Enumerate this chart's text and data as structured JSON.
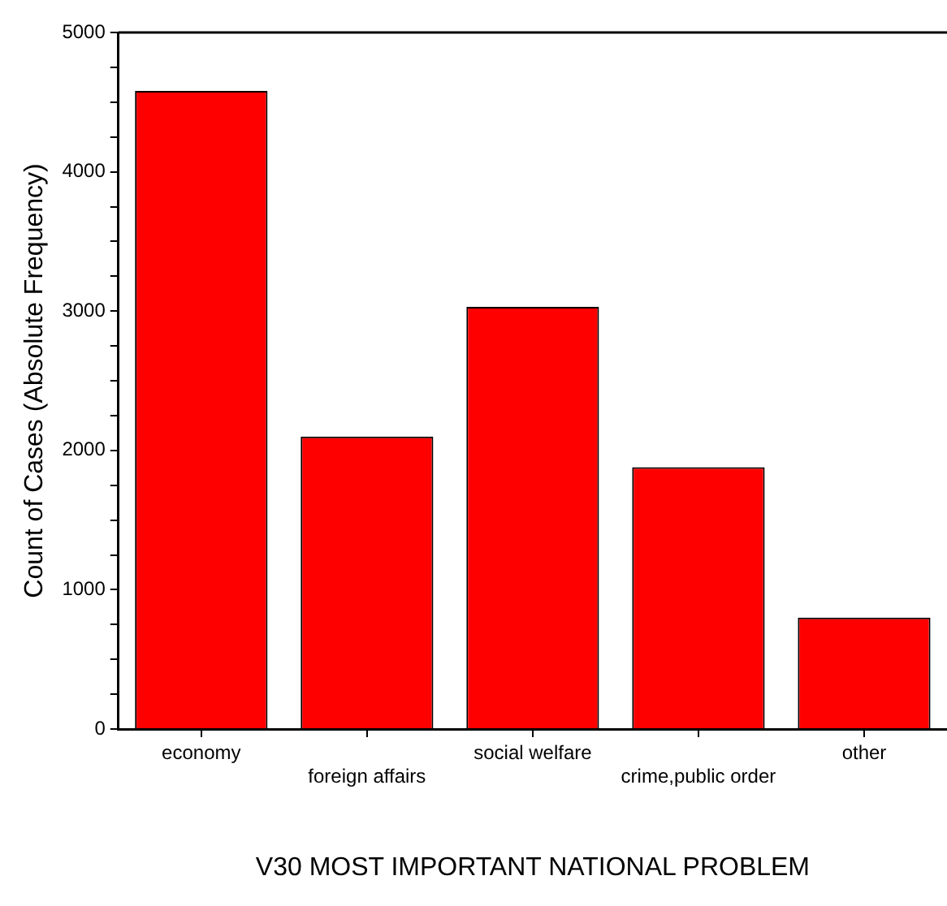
{
  "chart_data": {
    "type": "bar",
    "xlabel": "V30 MOST IMPORTANT NATIONAL PROBLEM",
    "ylabel": "Count of Cases (Absolute Frequency)",
    "categories": [
      "economy",
      "foreign affairs",
      "social welfare",
      "crime,public order",
      "other"
    ],
    "values": [
      4580,
      2100,
      3030,
      1880,
      800
    ],
    "color": "#ff0000",
    "ylim": [
      0,
      5000
    ],
    "yticks": [
      0,
      {
        "value": 250,
        "label": null
      },
      {
        "value": 500,
        "label": null
      },
      {
        "value": 750,
        "label": null
      },
      1000,
      {
        "value": 1250,
        "label": null
      },
      {
        "value": 1500,
        "label": null
      },
      {
        "value": 1750,
        "label": null
      },
      2000,
      {
        "value": 2250,
        "label": null
      },
      {
        "value": 2500,
        "label": null
      },
      {
        "value": 2750,
        "label": null
      },
      3000,
      {
        "value": 3250,
        "label": null
      },
      {
        "value": 3500,
        "label": null
      },
      {
        "value": 3750,
        "label": null
      },
      4000,
      {
        "value": 4250,
        "label": null
      },
      {
        "value": 4500,
        "label": null
      },
      {
        "value": 4750,
        "label": null
      },
      5000
    ],
    "grid": false,
    "legend": false
  }
}
